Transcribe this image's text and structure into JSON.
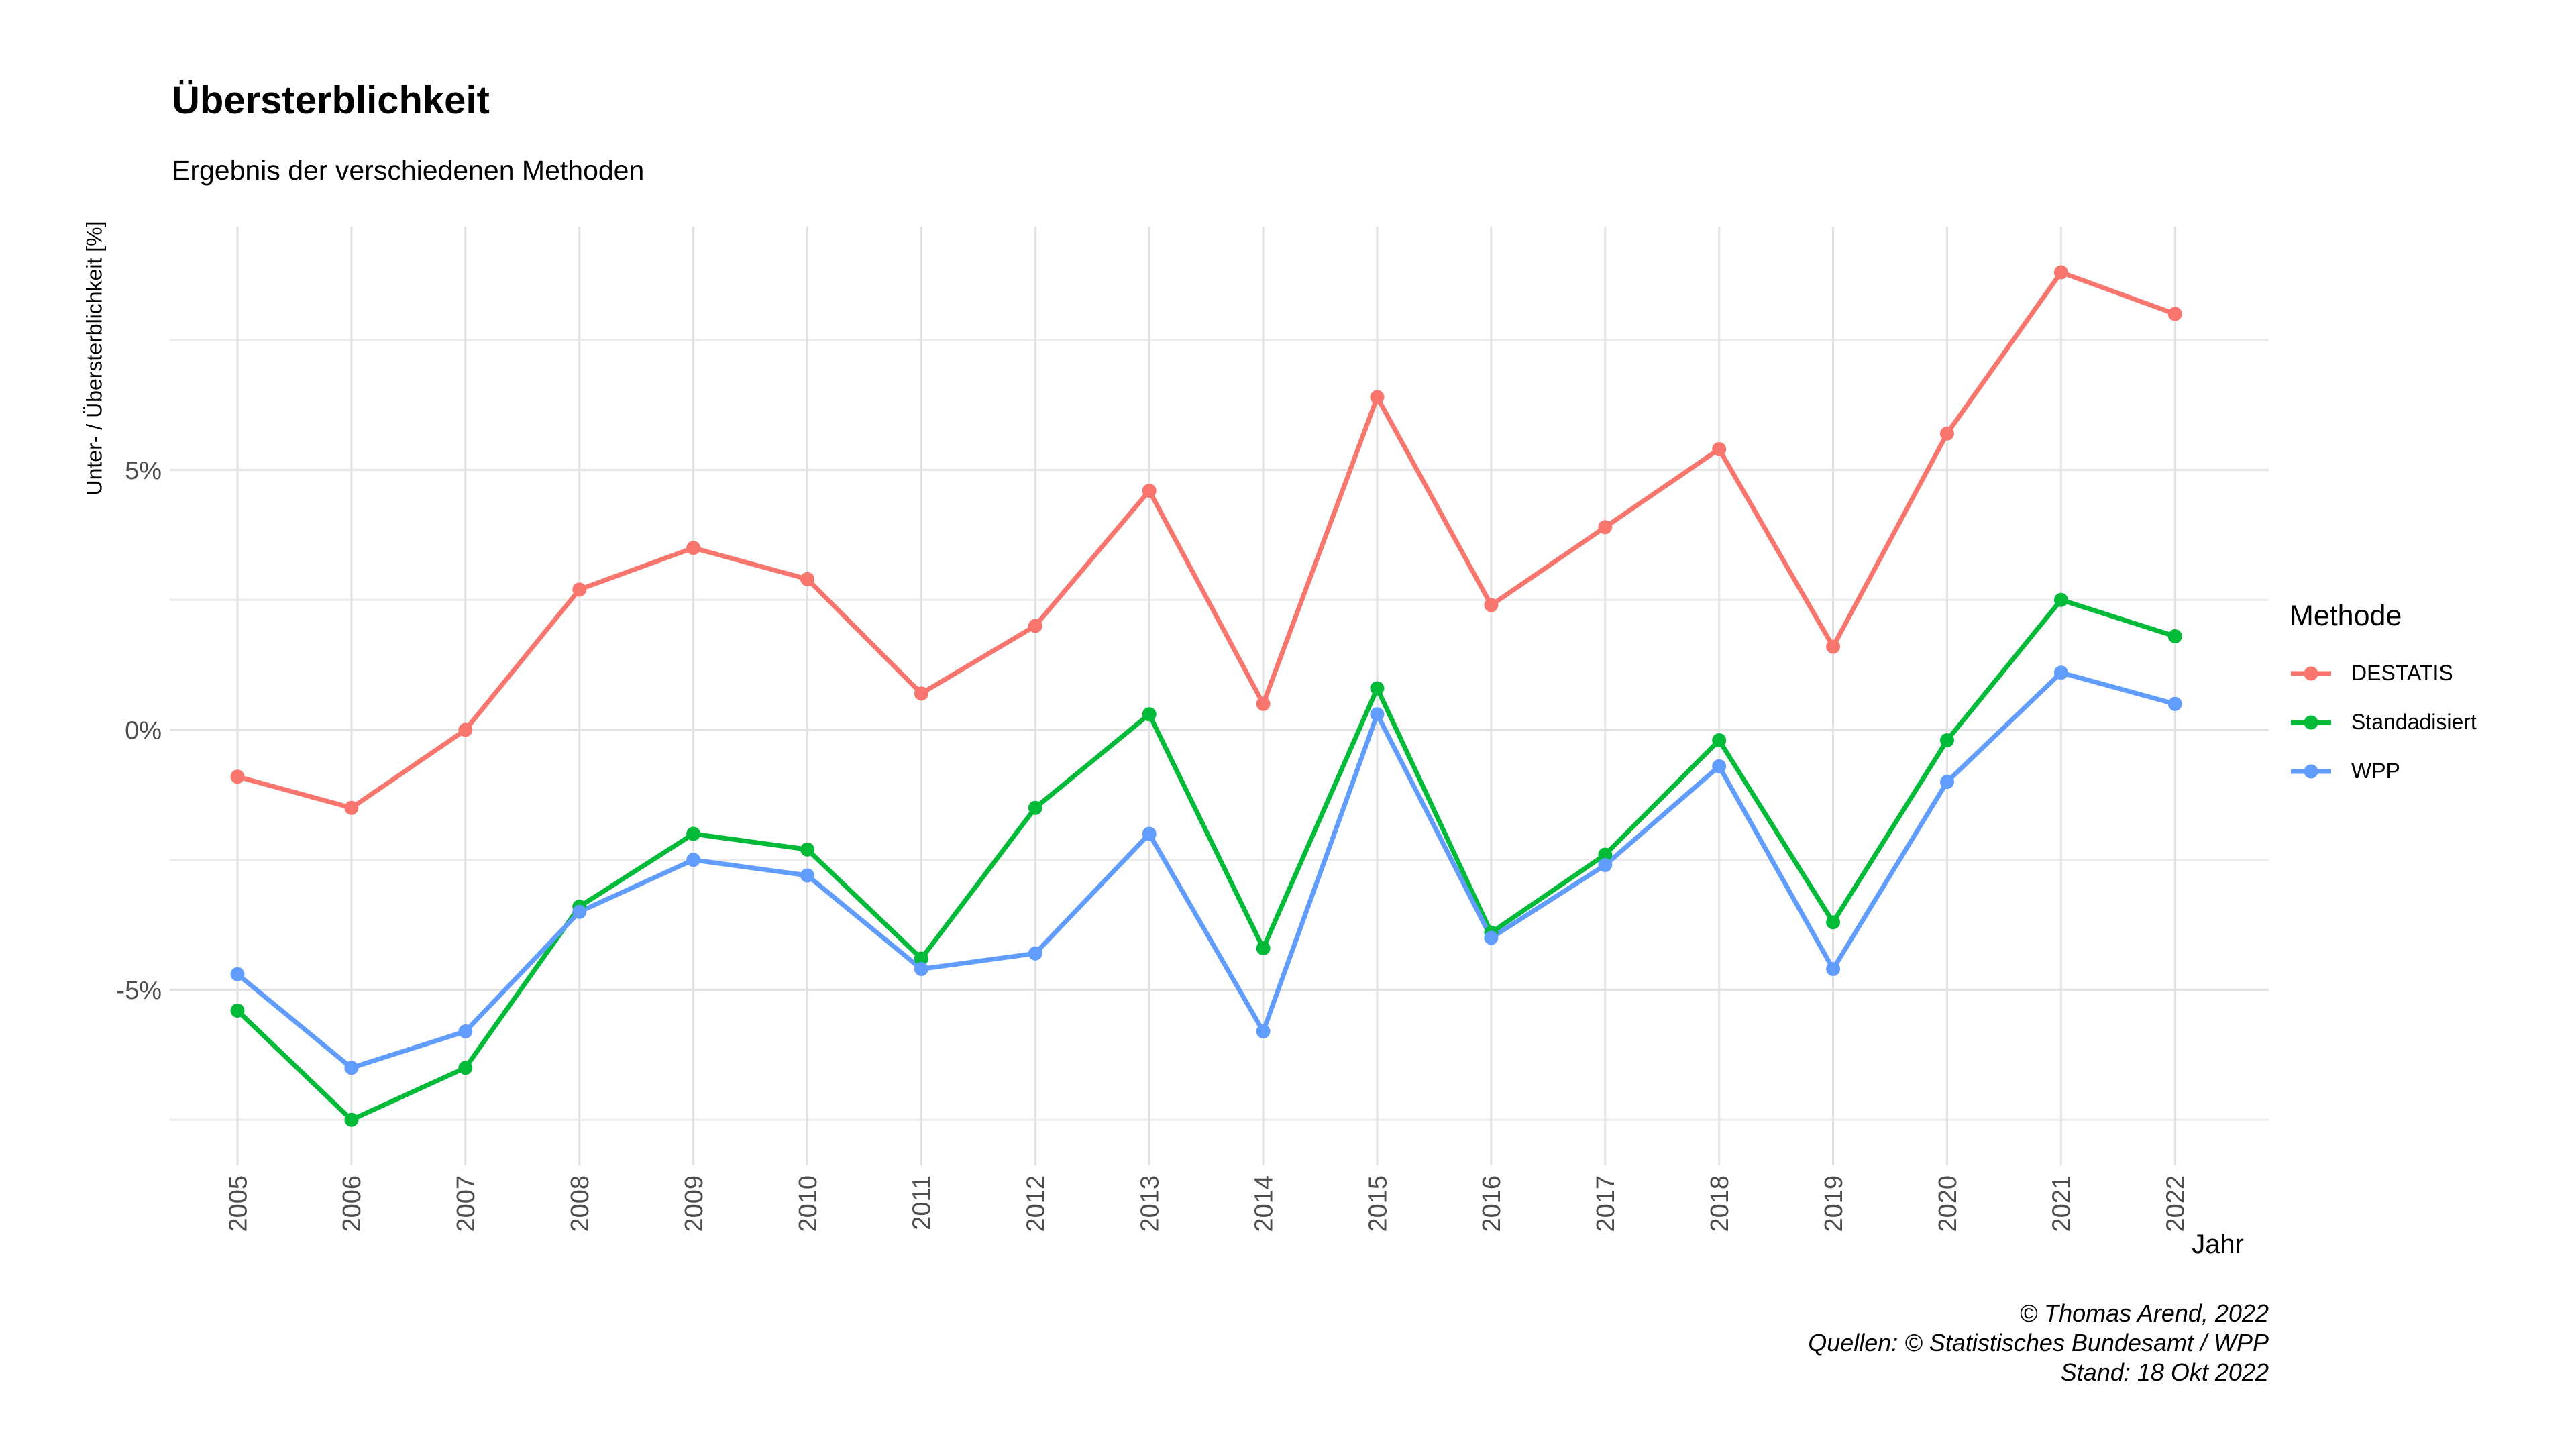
{
  "chart_data": {
    "type": "line",
    "title": "Übersterblichkeit",
    "subtitle": "Ergebnis der verschiedenen Methoden",
    "xlabel": "Jahr",
    "ylabel": "Unter- / Übersterblichkeit [%]",
    "legend_title": "Methode",
    "legend_position": "right",
    "grid": true,
    "x": [
      2005,
      2006,
      2007,
      2008,
      2009,
      2010,
      2011,
      2012,
      2013,
      2014,
      2015,
      2016,
      2017,
      2018,
      2019,
      2020,
      2021,
      2022
    ],
    "series": [
      {
        "name": "DESTATIS",
        "color": "#F8766D",
        "values": [
          -0.9,
          -1.5,
          0.0,
          2.7,
          3.5,
          2.9,
          0.7,
          2.0,
          4.6,
          0.5,
          6.4,
          2.4,
          3.9,
          5.4,
          1.6,
          5.7,
          8.8,
          8.0
        ]
      },
      {
        "name": "Standadisiert",
        "color": "#00BA38",
        "values": [
          -5.4,
          -7.5,
          -6.5,
          -3.4,
          -2.0,
          -2.3,
          -4.4,
          -1.5,
          0.3,
          -4.2,
          0.8,
          -3.9,
          -2.4,
          -0.2,
          -3.7,
          -0.2,
          2.5,
          1.8
        ]
      },
      {
        "name": "WPP",
        "color": "#619CFF",
        "values": [
          -4.7,
          -6.5,
          -5.8,
          -3.5,
          -2.5,
          -2.8,
          -4.6,
          -4.3,
          -2.0,
          -5.8,
          0.3,
          -4.0,
          -2.6,
          -0.7,
          -4.6,
          -1.0,
          1.1,
          0.5
        ]
      }
    ],
    "ylim": [
      -8.4,
      9.7
    ],
    "yticks_major": [
      {
        "value": 5,
        "label": "5%"
      },
      {
        "value": 0,
        "label": "0%"
      },
      {
        "value": -5,
        "label": "-5%"
      }
    ],
    "yticks_minor": [
      7.5,
      2.5,
      -2.5,
      -7.5
    ]
  },
  "footer": {
    "lines": [
      "© Thomas Arend, 2022",
      "Quellen: © Statistisches Bundesamt / WPP",
      "Stand: 18 Okt 2022"
    ]
  },
  "colors": {
    "background": "#FFFFFF",
    "tick_label": "#4D4D4D",
    "grid_major": "#E2E2E2",
    "grid_minor": "#EBEBEB",
    "text": "#000000"
  }
}
